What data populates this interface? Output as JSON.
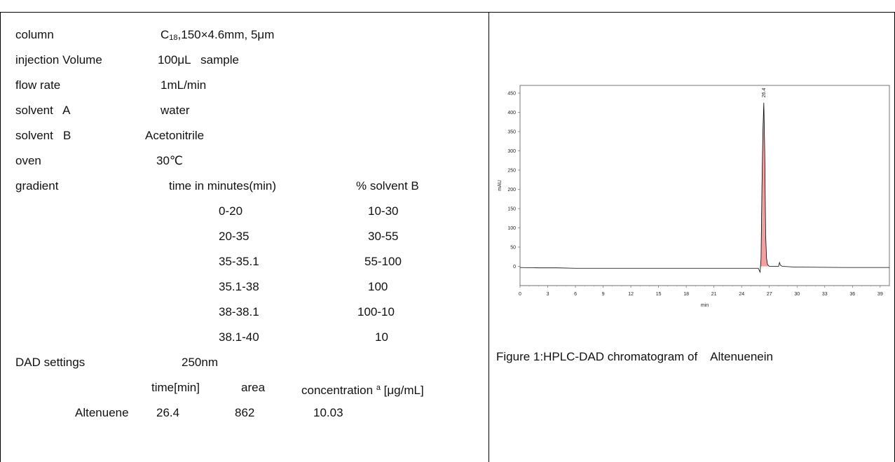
{
  "params": {
    "column_label": "column",
    "column_prefix": "C",
    "column_sub": "18",
    "column_value": ",150×4.6mm, 5μm",
    "injection_label": "injection Volume",
    "injection_value": "100μL   sample",
    "flow_label": "flow rate",
    "flow_value": "1mL/min",
    "solvent_a_label": "solvent   A",
    "solvent_a_value": "water",
    "solvent_b_label": "solvent   B",
    "solvent_b_value": "Acetonitrile",
    "oven_label": "oven",
    "oven_value": "30℃",
    "gradient_label": "gradient",
    "gradient_time_header": "time in minutes(min)",
    "gradient_b_header": "% solvent B",
    "gradient_rows": [
      {
        "time": "0-20",
        "b": "10-30"
      },
      {
        "time": "20-35",
        "b": "30-55"
      },
      {
        "time": "35-35.1",
        "b": "55-100"
      },
      {
        "time": "35.1-38",
        "b": "100"
      },
      {
        "time": "38-38.1",
        "b": "100-10"
      },
      {
        "time": "38.1-40",
        "b": "10"
      }
    ],
    "dad_label": "DAD settings",
    "dad_value": "250nm"
  },
  "results": {
    "header_time": "time[min]",
    "header_area": "area",
    "header_conc_prefix": "concentration",
    "header_conc_sup": "a",
    "header_conc_suffix": " [μg/mL]",
    "compound": "Altenuene",
    "time": "26.4",
    "area": "862",
    "concentration": "10.03"
  },
  "figure_caption": "Figure 1:HPLC-DAD chromatogram of    Altenuenein",
  "chart_data": {
    "type": "line",
    "title": "",
    "xlabel": "min",
    "ylabel": "mAU",
    "xlim": [
      0,
      40
    ],
    "ylim": [
      -50,
      470
    ],
    "x_ticks": [
      "0",
      "3",
      "6",
      "9",
      "12",
      "15",
      "18",
      "21",
      "24",
      "27",
      "30",
      "33",
      "36",
      "39"
    ],
    "y_ticks": [
      "0",
      "50",
      "100",
      "150",
      "200",
      "250",
      "300",
      "350",
      "400",
      "450"
    ],
    "peak_label": "26.4",
    "series": [
      {
        "color": "#000000",
        "x": [
          0,
          2,
          4,
          6,
          10,
          15,
          20,
          24,
          25.8,
          26.0,
          26.1,
          26.2,
          26.3,
          26.4,
          26.5,
          26.6,
          26.7,
          26.8,
          27.0,
          27.5,
          28.0,
          28.1,
          28.2,
          28.4,
          30,
          35,
          40
        ],
        "y": [
          -3,
          -4,
          -4,
          -5,
          -5,
          -5,
          -5,
          -5,
          -5,
          -15,
          20,
          210,
          350,
          425,
          300,
          80,
          20,
          5,
          0,
          0,
          0,
          10,
          3,
          0,
          -2,
          -3,
          -3
        ]
      }
    ],
    "peak_fill": {
      "color": "#f08080",
      "x": [
        26.0,
        26.1,
        26.2,
        26.3,
        26.4,
        26.5,
        26.6,
        26.7,
        26.8,
        27.0
      ],
      "y": [
        -5,
        20,
        210,
        350,
        425,
        300,
        80,
        20,
        5,
        0
      ]
    }
  }
}
